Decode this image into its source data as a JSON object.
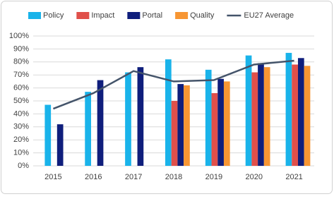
{
  "chart_data": {
    "type": "bar",
    "categories": [
      "2015",
      "2016",
      "2017",
      "2018",
      "2019",
      "2020",
      "2021"
    ],
    "series": [
      {
        "name": "Policy",
        "color": "#19b3ea",
        "values": [
          47,
          57,
          72,
          82,
          74,
          85,
          87
        ]
      },
      {
        "name": "Impact",
        "color": "#e0504a",
        "values": [
          null,
          null,
          null,
          50,
          56,
          72,
          78
        ]
      },
      {
        "name": "Portal",
        "color": "#0f1e7c",
        "values": [
          32,
          66,
          76,
          63,
          67,
          79,
          83
        ]
      },
      {
        "name": "Quality",
        "color": "#f79633",
        "values": [
          null,
          null,
          null,
          62,
          65,
          76,
          77
        ]
      },
      {
        "name": "EU27 Average",
        "color": "#44546a",
        "type": "line",
        "values": [
          44,
          56,
          73,
          65,
          66,
          78,
          81
        ]
      }
    ],
    "ylim": [
      0,
      100
    ],
    "yticks": [
      {
        "value": 0,
        "label": "0%"
      },
      {
        "value": 10,
        "label": "10%"
      },
      {
        "value": 20,
        "label": "20%"
      },
      {
        "value": 30,
        "label": "30%"
      },
      {
        "value": 40,
        "label": "40%"
      },
      {
        "value": 50,
        "label": "50%"
      },
      {
        "value": 60,
        "label": "60%"
      },
      {
        "value": 70,
        "label": "70%"
      },
      {
        "value": 80,
        "label": "80%"
      },
      {
        "value": 90,
        "label": "90%"
      },
      {
        "value": 100,
        "label": "100%"
      }
    ],
    "grid": true
  }
}
